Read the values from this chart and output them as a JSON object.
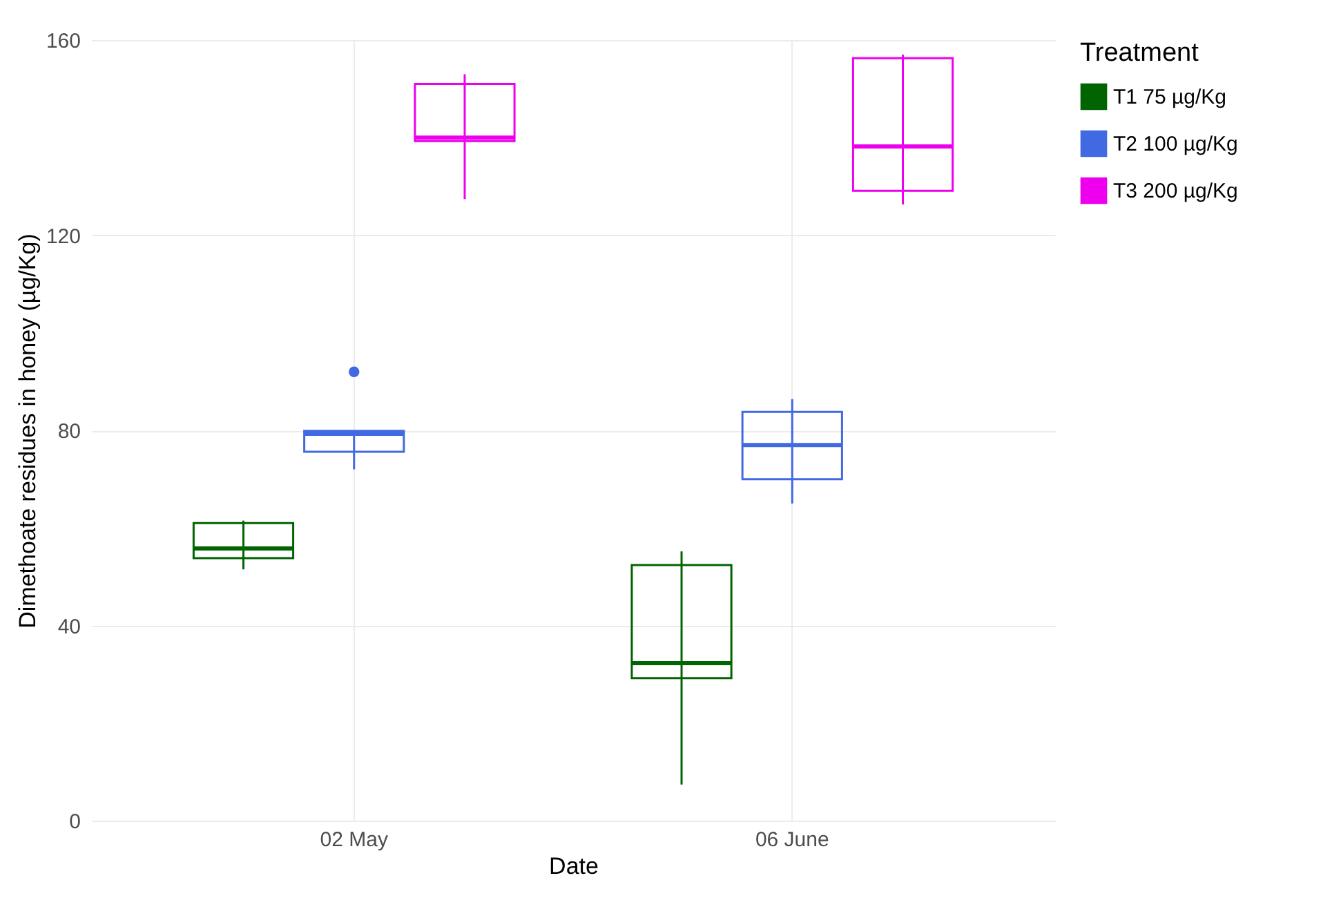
{
  "chart_data": {
    "type": "box",
    "xlabel": "Date",
    "ylabel": "Dimethoate residues in honey (µg/Kg)",
    "legend_title": "Treatment",
    "legend": "right",
    "grid": true,
    "categories": [
      "02 May",
      "06 June"
    ],
    "ylim": [
      0,
      160
    ],
    "yticks": [
      0,
      40,
      80,
      120,
      160
    ],
    "series": [
      {
        "name": "T1 75 µg/Kg",
        "color": "#006400",
        "boxes": [
          {
            "low": 51.5,
            "q1": 53.8,
            "median": 55.8,
            "q3": 61,
            "high": 61.5
          },
          {
            "low": 7.4,
            "q1": 29.2,
            "median": 32.3,
            "q3": 52.4,
            "high": 55.2
          }
        ]
      },
      {
        "name": "T2 100 µg/Kg",
        "color": "#4169e1",
        "boxes": [
          {
            "low": 72,
            "q1": 75.6,
            "median": 79.3,
            "q3": 79.9,
            "high": 79.9,
            "outliers": [
              92
            ]
          },
          {
            "low": 65,
            "q1": 70,
            "median": 77,
            "q3": 83.8,
            "high": 86.4
          }
        ]
      },
      {
        "name": "T3 200 µg/Kg",
        "color": "#ee00ee",
        "boxes": [
          {
            "low": 127.4,
            "q1": 139.3,
            "median": 140,
            "q3": 151,
            "high": 153
          },
          {
            "low": 126.3,
            "q1": 129.1,
            "median": 138.2,
            "q3": 156.3,
            "high": 157
          }
        ]
      }
    ]
  }
}
